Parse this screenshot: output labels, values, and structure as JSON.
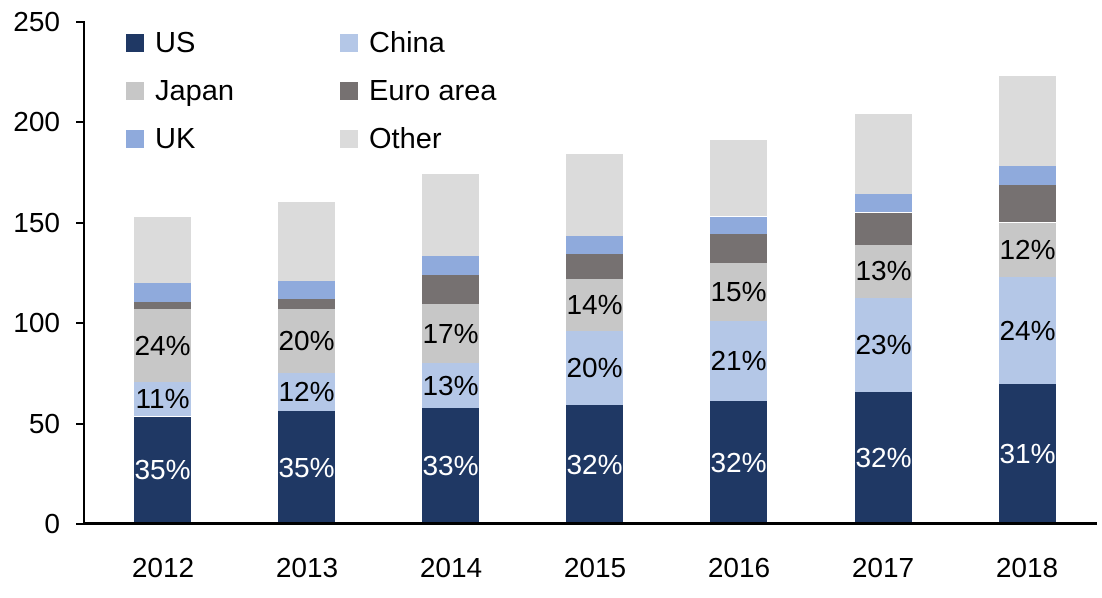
{
  "chart_data": {
    "type": "bar",
    "stacked": true,
    "title": "",
    "xlabel": "",
    "ylabel": "",
    "categories": [
      "2012",
      "2013",
      "2014",
      "2015",
      "2016",
      "2017",
      "2018"
    ],
    "totals": [
      153,
      160,
      174,
      184,
      191,
      204,
      223
    ],
    "series": [
      {
        "name": "US",
        "color": "#1F3864",
        "values": [
          53.5,
          56,
          57.5,
          59,
          61,
          65.5,
          69.5
        ],
        "segment_labels": [
          "35%",
          "35%",
          "33%",
          "32%",
          "32%",
          "32%",
          "31%"
        ],
        "label_color": "#FFFFFF"
      },
      {
        "name": "China",
        "color": "#B4C7E7",
        "values": [
          17,
          19,
          22.5,
          37,
          40,
          47,
          53.5
        ],
        "segment_labels": [
          "11%",
          "12%",
          "13%",
          "20%",
          "21%",
          "23%",
          "24%"
        ],
        "label_color": "#000000"
      },
      {
        "name": "Japan",
        "color": "#C7C7C7",
        "values": [
          36.5,
          32,
          29.5,
          26,
          29,
          26.5,
          27
        ],
        "segment_labels": [
          "24%",
          "20%",
          "17%",
          "14%",
          "15%",
          "13%",
          "12%"
        ],
        "label_color": "#000000"
      },
      {
        "name": "Euro area",
        "color": "#767171",
        "values": [
          3.5,
          5,
          14.5,
          12.5,
          14.5,
          16,
          18.5
        ],
        "segment_labels": null,
        "label_color": null
      },
      {
        "name": "UK",
        "color": "#8FAADC",
        "values": [
          9.5,
          9,
          9.5,
          9,
          8.5,
          9,
          9.5
        ],
        "segment_labels": null,
        "label_color": null
      },
      {
        "name": "Other",
        "color": "#DBDBDB",
        "values": [
          33,
          39,
          40.5,
          40.5,
          38,
          40,
          45
        ],
        "segment_labels": null,
        "label_color": null
      }
    ],
    "ylim": [
      0,
      250
    ],
    "yticks": [
      0,
      50,
      100,
      150,
      200,
      250
    ],
    "ytick_labels": [
      "0",
      "50",
      "100",
      "150",
      "200",
      "250"
    ],
    "grid": false,
    "legend_position": "top-left",
    "legend_layout": "2-columns-row-major",
    "axis_color": "#000000",
    "background_color": "#FFFFFF",
    "text_color": "#000000"
  }
}
